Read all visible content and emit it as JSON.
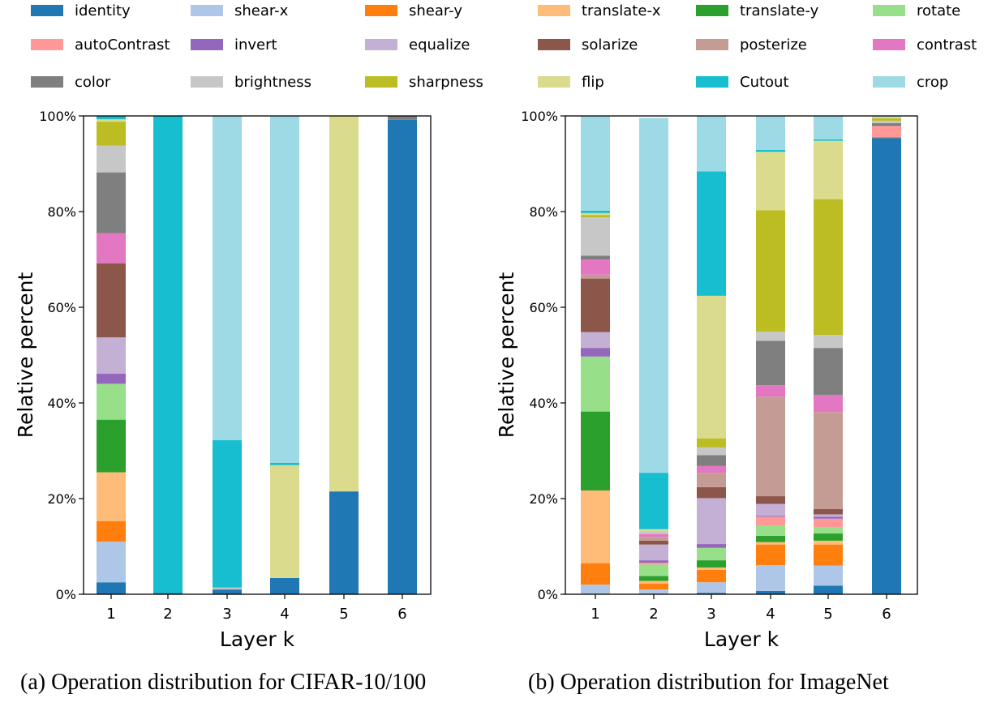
{
  "legend": [
    {
      "label": "identity",
      "color": "#1f77b4"
    },
    {
      "label": "shear-x",
      "color": "#aec7e8"
    },
    {
      "label": "shear-y",
      "color": "#ff7f0e"
    },
    {
      "label": "translate-x",
      "color": "#ffbb78"
    },
    {
      "label": "translate-y",
      "color": "#2ca02c"
    },
    {
      "label": "rotate",
      "color": "#98df8a"
    },
    {
      "label": "autoContrast",
      "color": "#ff9896"
    },
    {
      "label": "invert",
      "color": "#9467bd"
    },
    {
      "label": "equalize",
      "color": "#c5b0d5"
    },
    {
      "label": "solarize",
      "color": "#8c564b"
    },
    {
      "label": "posterize",
      "color": "#c49c94"
    },
    {
      "label": "contrast",
      "color": "#e377c2"
    },
    {
      "label": "color",
      "color": "#7f7f7f"
    },
    {
      "label": "brightness",
      "color": "#c7c7c7"
    },
    {
      "label": "sharpness",
      "color": "#bcbd22"
    },
    {
      "label": "flip",
      "color": "#dbdb8d"
    },
    {
      "label": "Cutout",
      "color": "#17becf"
    },
    {
      "label": "crop",
      "color": "#9edae5"
    }
  ],
  "captions": {
    "a": "(a) Operation distribution for CIFAR-10/100",
    "b": "(b) Operation distribution for ImageNet"
  },
  "chart_data": [
    {
      "type": "bar",
      "stacked": true,
      "xlabel": "Layer k",
      "ylabel": "Relative percent",
      "ylim": [
        0,
        100
      ],
      "yticks": [
        "0%",
        "20%",
        "40%",
        "60%",
        "80%",
        "100%"
      ],
      "categories": [
        "1",
        "2",
        "3",
        "4",
        "5",
        "6"
      ],
      "series": [
        {
          "name": "identity",
          "values": [
            2.5,
            0.3,
            1.0,
            3.4,
            21.5,
            99.2
          ]
        },
        {
          "name": "shear-x",
          "values": [
            8.5,
            0,
            0,
            0,
            0,
            0
          ]
        },
        {
          "name": "shear-y",
          "values": [
            4.3,
            0,
            0,
            0,
            0,
            0
          ]
        },
        {
          "name": "translate-x",
          "values": [
            10.2,
            0,
            0,
            0,
            0,
            0
          ]
        },
        {
          "name": "translate-y",
          "values": [
            11.0,
            0,
            0,
            0,
            0,
            0
          ]
        },
        {
          "name": "rotate",
          "values": [
            7.5,
            0,
            0,
            0,
            0,
            0
          ]
        },
        {
          "name": "autoContrast",
          "values": [
            0,
            0,
            0,
            0,
            0,
            0
          ]
        },
        {
          "name": "invert",
          "values": [
            2.1,
            0,
            0,
            0,
            0,
            0
          ]
        },
        {
          "name": "equalize",
          "values": [
            7.6,
            0,
            0,
            0,
            0,
            0
          ]
        },
        {
          "name": "solarize",
          "values": [
            15.5,
            0,
            0,
            0,
            0,
            0
          ]
        },
        {
          "name": "posterize",
          "values": [
            0,
            0,
            0,
            0,
            0,
            0
          ]
        },
        {
          "name": "contrast",
          "values": [
            6.3,
            0,
            0,
            0,
            0,
            0
          ]
        },
        {
          "name": "color",
          "values": [
            12.7,
            0,
            0,
            0,
            0,
            0.8
          ]
        },
        {
          "name": "brightness",
          "values": [
            5.6,
            0,
            0.4,
            0,
            0,
            0
          ]
        },
        {
          "name": "sharpness",
          "values": [
            5.0,
            0,
            0,
            0,
            0,
            0
          ]
        },
        {
          "name": "flip",
          "values": [
            0.5,
            0,
            0,
            23.6,
            78.5,
            0
          ]
        },
        {
          "name": "Cutout",
          "values": [
            0.7,
            99.7,
            30.8,
            0.5,
            0,
            0
          ]
        },
        {
          "name": "crop",
          "values": [
            0,
            0,
            67.8,
            72.5,
            0,
            0
          ]
        }
      ]
    },
    {
      "type": "bar",
      "stacked": true,
      "xlabel": "Layer k",
      "ylabel": "Relative percent",
      "ylim": [
        0,
        100
      ],
      "yticks": [
        "0%",
        "20%",
        "40%",
        "60%",
        "80%",
        "100%"
      ],
      "categories": [
        "1",
        "2",
        "3",
        "4",
        "5",
        "6"
      ],
      "series": [
        {
          "name": "identity",
          "values": [
            0,
            0,
            0.3,
            0.7,
            1.8,
            95.4
          ]
        },
        {
          "name": "shear-x",
          "values": [
            2.0,
            1.0,
            2.2,
            5.4,
            4.2,
            0
          ]
        },
        {
          "name": "shear-y",
          "values": [
            4.5,
            1.2,
            2.6,
            4.3,
            4.4,
            0.2
          ]
        },
        {
          "name": "translate-x",
          "values": [
            15.2,
            0.6,
            0.5,
            0.5,
            0.8,
            0
          ]
        },
        {
          "name": "translate-y",
          "values": [
            16.5,
            1.0,
            1.5,
            1.3,
            1.5,
            0
          ]
        },
        {
          "name": "rotate",
          "values": [
            11.5,
            2.4,
            2.6,
            2.2,
            1.3,
            0
          ]
        },
        {
          "name": "autoContrast",
          "values": [
            0,
            0.4,
            0,
            1.8,
            1.8,
            2.3
          ]
        },
        {
          "name": "invert",
          "values": [
            1.8,
            0.5,
            0.8,
            0.2,
            0.4,
            0
          ]
        },
        {
          "name": "equalize",
          "values": [
            3.3,
            3.3,
            9.6,
            2.5,
            0.5,
            0
          ]
        },
        {
          "name": "solarize",
          "values": [
            11.2,
            0.8,
            2.3,
            1.6,
            1.1,
            0
          ]
        },
        {
          "name": "posterize",
          "values": [
            0.8,
            0.8,
            3.0,
            20.8,
            20.3,
            0
          ]
        },
        {
          "name": "contrast",
          "values": [
            3.2,
            0.6,
            1.4,
            2.4,
            3.6,
            0
          ]
        },
        {
          "name": "color",
          "values": [
            0.8,
            0,
            2.3,
            9.3,
            9.8,
            0.6
          ]
        },
        {
          "name": "brightness",
          "values": [
            8.0,
            0.6,
            1.6,
            1.9,
            2.7,
            0.5
          ]
        },
        {
          "name": "sharpness",
          "values": [
            0.5,
            0,
            1.9,
            25.4,
            28.4,
            0.5
          ]
        },
        {
          "name": "flip",
          "values": [
            0.4,
            0.4,
            29.8,
            12.2,
            12.2,
            0.3
          ]
        },
        {
          "name": "Cutout",
          "values": [
            0.5,
            11.8,
            26.0,
            0.4,
            0.3,
            0
          ]
        },
        {
          "name": "crop",
          "values": [
            19.8,
            74.2,
            11.6,
            7.1,
            4.9,
            0.2
          ]
        }
      ]
    }
  ]
}
